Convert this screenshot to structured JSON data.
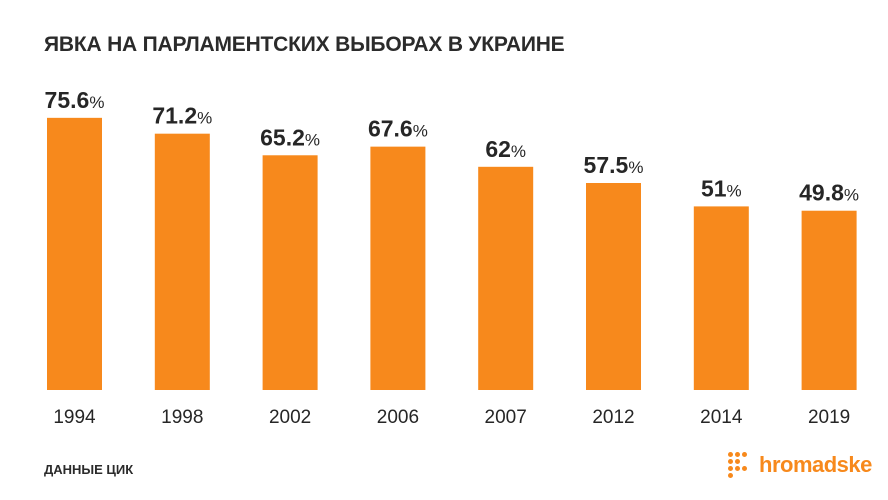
{
  "chart_data": {
    "type": "bar",
    "title": "ЯВКА НА ПАРЛАМЕНТСКИХ ВЫБОРАХ В УКРАИНЕ",
    "categories": [
      "1994",
      "1998",
      "2002",
      "2006",
      "2007",
      "2012",
      "2014",
      "2019"
    ],
    "values": [
      75.6,
      71.2,
      65.2,
      67.6,
      62,
      57.5,
      51,
      49.8
    ],
    "value_suffix": "%",
    "ylim": [
      0,
      100
    ],
    "grid": false,
    "legend": "none",
    "bar_color": "#f7891c"
  },
  "footer": {
    "source": "ДАННЫЕ ЦИК",
    "brand": "hromadske"
  }
}
